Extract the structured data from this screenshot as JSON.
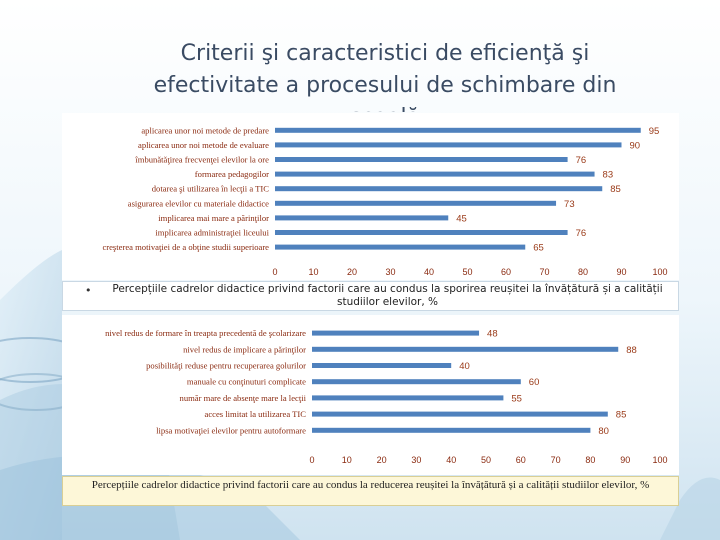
{
  "slide": {
    "title": "Criterii şi caracteristici de eficienţă şi efectivitate a procesului de schimbare din şcoală",
    "caption1": "Percepțiile cadrelor didactice privind factorii care au condus la sporirea reușitei la învățătură și a calității studiilor elevilor, %",
    "caption2": "Percepțiile cadrelor didactice privind factorii care au condus la reducerea reușitei la învățătură și a calității studiilor elevilor, %",
    "bullet": "•"
  },
  "chart_data": [
    {
      "type": "bar",
      "orientation": "horizontal",
      "categories": [
        "aplicarea unor noi metode de predare",
        "aplicarea unor noi metode de evaluare",
        "îmbunătăţirea frecvenţei elevilor la ore",
        "formarea pedagogilor",
        "dotarea şi utilizarea în lecţii a TIC",
        "asigurarea elevilor cu materiale didactice",
        "implicarea mai mare a părinţilor",
        "implicarea administraţiei liceului",
        "creşterea motivaţiei de a obţine studii superioare"
      ],
      "values": [
        95,
        90,
        76,
        83,
        85,
        73,
        45,
        76,
        65
      ],
      "xlim": [
        0,
        100
      ],
      "ticks": [
        0,
        10,
        20,
        30,
        40,
        50,
        60,
        70,
        80,
        90,
        100
      ],
      "grid": false,
      "color": "#4f81bd"
    },
    {
      "type": "bar",
      "orientation": "horizontal",
      "categories": [
        "nivel redus de formare în treapta precedentă de şcolarizare",
        "nivel redus de implicare a părinţilor",
        "posibilităţi reduse pentru recuperarea golurilor",
        "manuale cu conţinuturi complicate",
        "număr mare de absenţe mare la lecţii",
        "acces limitat la utilizarea TIC",
        "lipsa motivaţiei elevilor pentru autoformare"
      ],
      "values": [
        48,
        88,
        40,
        60,
        55,
        85,
        80
      ],
      "xlim": [
        0,
        100
      ],
      "ticks": [
        0,
        10,
        20,
        30,
        40,
        50,
        60,
        70,
        80,
        90,
        100
      ],
      "grid": false,
      "color": "#4f81bd"
    }
  ]
}
